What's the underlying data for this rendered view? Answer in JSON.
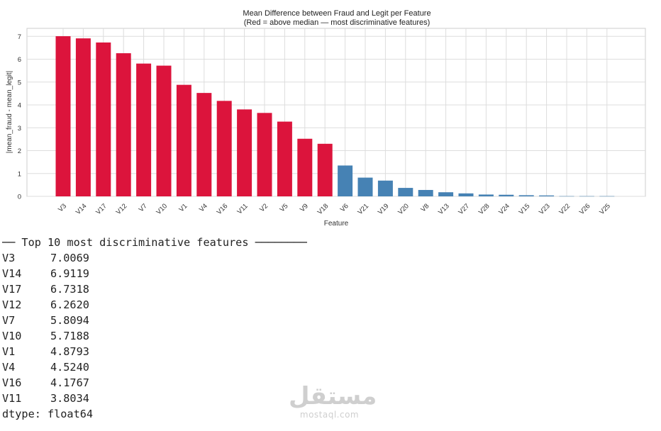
{
  "chart_data": {
    "type": "bar",
    "title": "Mean Difference between Fraud and Legit per Feature",
    "subtitle": "(Red = above median — most discriminative features)",
    "xlabel": "Feature",
    "ylabel": "|mean_fraud - mean_legit|",
    "ylim": [
      0,
      7.35
    ],
    "yticks": [
      0,
      1,
      2,
      3,
      4,
      5,
      6,
      7
    ],
    "grid": true,
    "categories": [
      "V3",
      "V14",
      "V17",
      "V12",
      "V7",
      "V10",
      "V1",
      "V4",
      "V16",
      "V11",
      "V2",
      "V5",
      "V9",
      "V18",
      "V6",
      "V21",
      "V19",
      "V20",
      "V8",
      "V13",
      "V27",
      "V28",
      "V24",
      "V15",
      "V23",
      "V22",
      "V26",
      "V25"
    ],
    "values": [
      7.0069,
      6.9119,
      6.7318,
      6.262,
      5.8094,
      5.7188,
      4.8793,
      4.524,
      4.1767,
      3.8034,
      3.65,
      3.27,
      2.52,
      2.3,
      1.35,
      0.82,
      0.69,
      0.37,
      0.28,
      0.18,
      0.13,
      0.08,
      0.07,
      0.05,
      0.04,
      0.01,
      0.01,
      0.01
    ],
    "colors": {
      "above_median": "#dc143c",
      "below_median": "#4682b4"
    },
    "above_median_count": 14
  },
  "console": {
    "header": "── Top 10 most discriminative features ────────",
    "rows": [
      {
        "name": "V3",
        "value": "7.0069"
      },
      {
        "name": "V14",
        "value": "6.9119"
      },
      {
        "name": "V17",
        "value": "6.7318"
      },
      {
        "name": "V12",
        "value": "6.2620"
      },
      {
        "name": "V7",
        "value": "5.8094"
      },
      {
        "name": "V10",
        "value": "5.7188"
      },
      {
        "name": "V1",
        "value": "4.8793"
      },
      {
        "name": "V4",
        "value": "4.5240"
      },
      {
        "name": "V16",
        "value": "4.1767"
      },
      {
        "name": "V11",
        "value": "3.8034"
      }
    ],
    "dtype": "dtype: float64"
  },
  "watermark": {
    "logo": "مستقل",
    "url": "mostaql.com"
  }
}
